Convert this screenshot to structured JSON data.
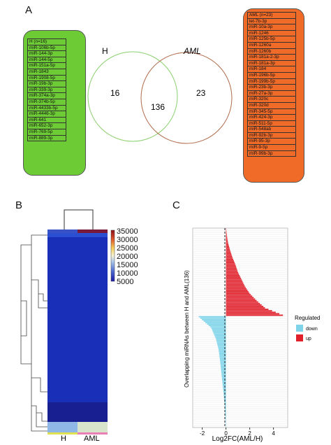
{
  "panels": {
    "a": "A",
    "b": "B",
    "c": "C"
  },
  "venn": {
    "left_title": "H",
    "right_title": "AML",
    "left_only": "16",
    "overlap": "136",
    "right_only": "23",
    "left_color": "#8bd06f",
    "right_color": "#b06a4a"
  },
  "h_box": {
    "color": "#6dcc35",
    "items": [
      "H (n=16)",
      "miR-106b-5p",
      "miR-144-3p",
      "miR-144-5p",
      "miR-151a-5p",
      "miR-1843",
      "miR-1908-5p",
      "miR-19b-3p",
      "miR-339-3p",
      "miR-374a-3p",
      "miR-374b-5p",
      "miR-4433b-5p",
      "miR-4446-3p",
      "miR-641",
      "miR-652-3p",
      "miR-769-5p",
      "miR-889-3p"
    ]
  },
  "aml_box": {
    "color": "#f06a28",
    "items": [
      "AML (n=23)",
      "let-7b-3p",
      "miR-10a-3p",
      "miR-1246",
      "miR-125b-5p",
      "miR-1260a",
      "miR-1260b",
      "miR-181a-2-3p",
      "miR-181a-3p",
      "miR-184",
      "miR-196b-5p",
      "miR-199b-5p",
      "miR-23b-3p",
      "miR-27a-3p",
      "miR-320c",
      "miR-320d",
      "miR-345-5p",
      "miR-424-3p",
      "miR-511-5p",
      "miR-548ab",
      "miR-92b-3p",
      "miR-95-3p",
      "miR-9-5p",
      "miR-99b-3p"
    ]
  },
  "heatmap": {
    "x_labels": [
      "H",
      "AML"
    ],
    "colorbar_ticks": [
      "35000",
      "30000",
      "25000",
      "20000",
      "15000",
      "10000",
      "5000"
    ]
  },
  "chart_data": {
    "type": "bar",
    "orientation": "horizontal",
    "xlabel": "Log2FC(AML/H)",
    "ylabel": "Overlapping miRNAs between H and AML(136)",
    "xlim": [
      -2.8,
      5.2
    ],
    "x_ticks": [
      -2,
      0,
      2,
      4
    ],
    "zero_line": "dashed",
    "legend_position": "right",
    "legend_title": "Regulated",
    "n_up": 60,
    "n_down": 76,
    "up_color": "#e0202a",
    "down_color": "#7fd4ea",
    "series": [
      {
        "name": "down",
        "values_sorted_min_to_max": [
          -2.3,
          -1.25,
          -0.85,
          -0.62,
          -0.5,
          -0.4,
          -0.3,
          -0.2,
          -0.12,
          -0.06,
          -0.02
        ]
      },
      {
        "name": "up",
        "values_sorted_max_to_min": [
          4.8,
          3.3,
          2.6,
          2.0,
          1.6,
          1.3,
          1.0,
          0.8,
          0.55,
          0.35,
          0.18,
          0.08,
          0.02
        ]
      }
    ]
  }
}
